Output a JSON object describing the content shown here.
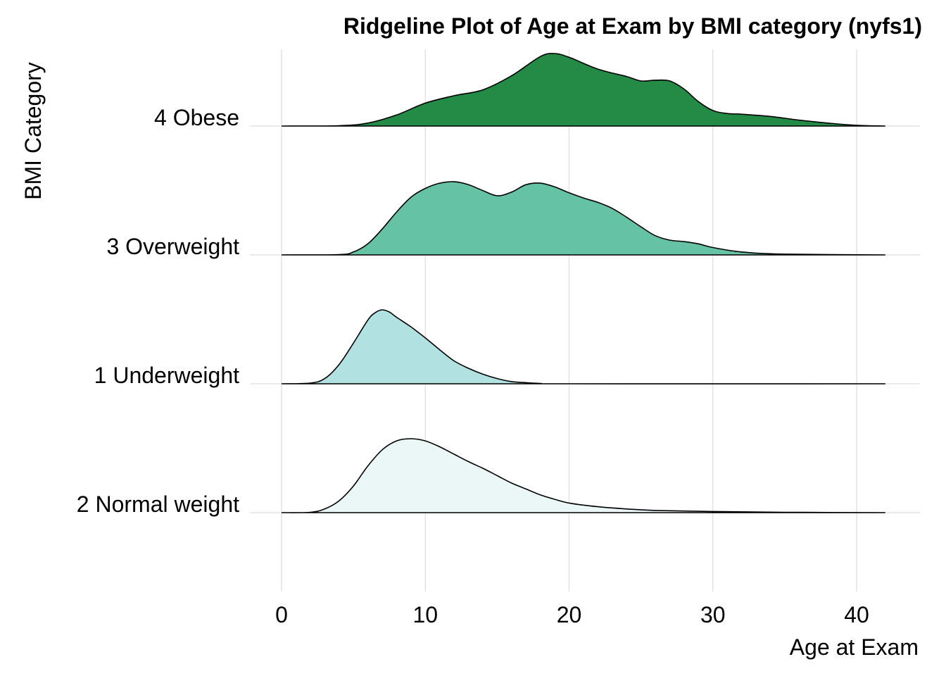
{
  "chart_data": {
    "type": "ridgeline",
    "title": "Ridgeline Plot of Age at Exam by BMI category (nyfs1)",
    "xlabel": "Age at Exam",
    "ylabel": "BMI Category",
    "xlim": [
      0,
      42
    ],
    "xticks": [
      0,
      10,
      20,
      30,
      40
    ],
    "grid": true,
    "legend": "none",
    "categories": [
      "2 Normal weight",
      "1 Underweight",
      "3 Overweight",
      "4 Obese"
    ],
    "series": [
      {
        "name": "2 Normal weight",
        "color": "#ebf6f7",
        "x": [
          0,
          2,
          3,
          4,
          5,
          6,
          7,
          8,
          9,
          10,
          11,
          12,
          13,
          14,
          15,
          16,
          17,
          18,
          19,
          20,
          22,
          24,
          26,
          30,
          35,
          42
        ],
        "values": [
          0,
          0.005,
          0.05,
          0.16,
          0.36,
          0.63,
          0.85,
          0.97,
          1.0,
          0.97,
          0.89,
          0.79,
          0.69,
          0.6,
          0.5,
          0.4,
          0.32,
          0.24,
          0.18,
          0.13,
          0.08,
          0.05,
          0.03,
          0.015,
          0.005,
          0
        ]
      },
      {
        "name": "1 Underweight",
        "color": "#b1e1e1",
        "x": [
          0,
          2,
          3,
          4,
          5,
          6,
          6.5,
          7,
          7.5,
          8,
          9,
          10,
          11,
          12,
          13,
          14,
          15,
          16,
          17,
          18,
          20,
          42
        ],
        "values": [
          0,
          0.01,
          0.07,
          0.26,
          0.55,
          0.86,
          0.96,
          1.0,
          0.97,
          0.9,
          0.77,
          0.62,
          0.46,
          0.31,
          0.21,
          0.13,
          0.07,
          0.03,
          0.015,
          0.005,
          0,
          0
        ]
      },
      {
        "name": "3 Overweight",
        "color": "#66c2a4",
        "x": [
          0,
          4,
          5,
          6,
          7,
          8,
          9,
          10,
          11,
          12,
          13,
          14,
          15,
          16,
          17,
          18,
          19,
          20,
          21,
          22,
          23,
          24,
          25,
          26,
          27,
          28,
          29,
          30,
          32,
          35,
          42
        ],
        "values": [
          0,
          0.005,
          0.04,
          0.15,
          0.35,
          0.58,
          0.78,
          0.9,
          0.97,
          0.99,
          0.95,
          0.87,
          0.8,
          0.85,
          0.95,
          0.97,
          0.92,
          0.84,
          0.77,
          0.71,
          0.63,
          0.51,
          0.38,
          0.26,
          0.2,
          0.18,
          0.15,
          0.1,
          0.04,
          0.01,
          0
        ]
      },
      {
        "name": "4 Obese",
        "color": "#238b45",
        "x": [
          0,
          4,
          6,
          8,
          10,
          12,
          14,
          16,
          18,
          19,
          20,
          22,
          24,
          25,
          26,
          27,
          28,
          29,
          30,
          31,
          32,
          34,
          36,
          38,
          40,
          42
        ],
        "values": [
          0,
          0.005,
          0.04,
          0.15,
          0.31,
          0.41,
          0.49,
          0.68,
          0.94,
          0.98,
          0.93,
          0.77,
          0.67,
          0.61,
          0.62,
          0.61,
          0.5,
          0.33,
          0.21,
          0.17,
          0.16,
          0.13,
          0.08,
          0.04,
          0.01,
          0
        ]
      }
    ]
  }
}
